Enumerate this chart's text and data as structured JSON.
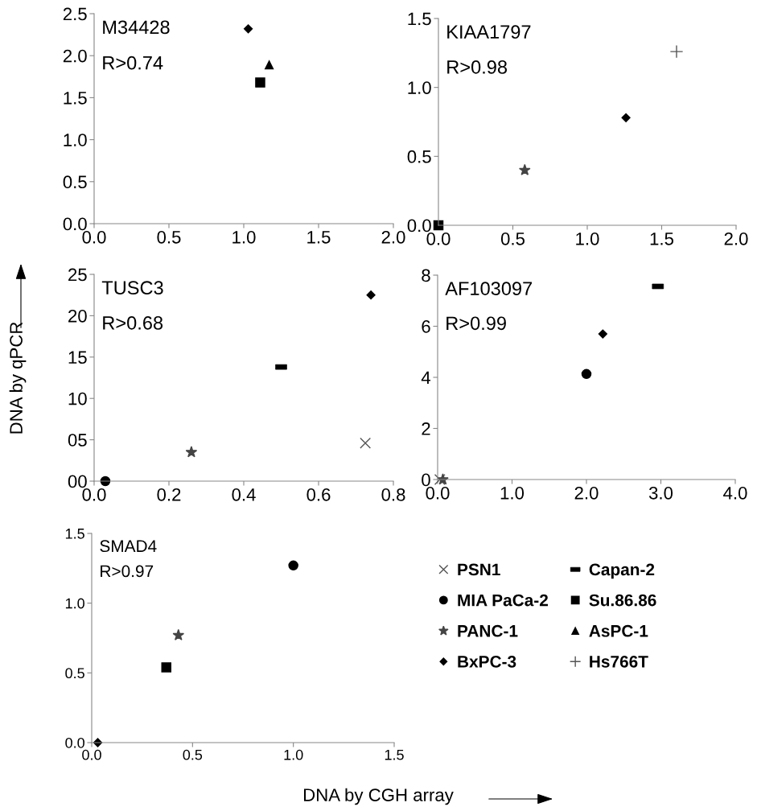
{
  "chart_data": [
    {
      "type": "scatter",
      "annotations": [
        "M34428",
        "R>0.74"
      ],
      "xlim": [
        0.0,
        2.0
      ],
      "xticks": [
        {
          "value": 0,
          "label": "0.0"
        },
        {
          "value": 0.5,
          "label": "0.5"
        },
        {
          "value": 1,
          "label": "1.0"
        },
        {
          "value": 1.5,
          "label": "1.5"
        },
        {
          "value": 2,
          "label": "2.0"
        }
      ],
      "ylim": [
        0.0,
        2.5
      ],
      "yticks": [
        {
          "value": 0,
          "label": "0.0"
        },
        {
          "value": 0.5,
          "label": "0.5"
        },
        {
          "value": 1,
          "label": "1.0"
        },
        {
          "value": 1.5,
          "label": "1.5"
        },
        {
          "value": 2,
          "label": "2.0"
        },
        {
          "value": 2.5,
          "label": "2.5"
        }
      ],
      "series": [
        {
          "marker": "diamond",
          "color": "#000000",
          "x": [
            1.03
          ],
          "values": [
            2.32
          ]
        },
        {
          "marker": "square",
          "color": "#000000",
          "x": [
            1.11
          ],
          "values": [
            1.68
          ]
        },
        {
          "marker": "triangle",
          "color": "#000000",
          "x": [
            1.17
          ],
          "values": [
            1.89
          ]
        }
      ]
    },
    {
      "type": "scatter",
      "annotations": [
        "KIAA1797",
        "R>0.98"
      ],
      "xlim": [
        0.0,
        2.0
      ],
      "xticks": [
        {
          "value": 0,
          "label": "0.0"
        },
        {
          "value": 0.5,
          "label": "0.5"
        },
        {
          "value": 1,
          "label": "1.0"
        },
        {
          "value": 1.5,
          "label": "1.5"
        },
        {
          "value": 2,
          "label": "2.0"
        }
      ],
      "ylim": [
        0.0,
        1.5
      ],
      "yticks": [
        {
          "value": 0,
          "label": "0.0"
        },
        {
          "value": 0.5,
          "label": "0.5"
        },
        {
          "value": 1,
          "label": "1.0"
        },
        {
          "value": 1.5,
          "label": "1.5"
        }
      ],
      "series": [
        {
          "marker": "square",
          "color": "#000000",
          "x": [
            0.0
          ],
          "values": [
            0.0
          ]
        },
        {
          "marker": "star",
          "color": "#444444",
          "x": [
            0.58
          ],
          "values": [
            0.4
          ]
        },
        {
          "marker": "diamond",
          "color": "#000000",
          "x": [
            1.26
          ],
          "values": [
            0.78
          ]
        },
        {
          "marker": "plus",
          "color": "#555555",
          "x": [
            1.6
          ],
          "values": [
            1.26
          ]
        }
      ]
    },
    {
      "type": "scatter",
      "annotations": [
        "TUSC3",
        "R>0.68"
      ],
      "ylabel": "DNA by qPCR",
      "xlim": [
        0.0,
        0.8
      ],
      "xticks": [
        {
          "value": 0,
          "label": "0.0"
        },
        {
          "value": 0.2,
          "label": "0.2"
        },
        {
          "value": 0.4,
          "label": "0.4"
        },
        {
          "value": 0.6,
          "label": "0.6"
        },
        {
          "value": 0.8,
          "label": "0.8"
        }
      ],
      "ylim": [
        0,
        25
      ],
      "yticks": [
        {
          "value": 0,
          "label": "00"
        },
        {
          "value": 5,
          "label": "05"
        },
        10,
        15,
        20,
        25
      ],
      "series": [
        {
          "marker": "circle",
          "color": "#000000",
          "x": [
            0.03
          ],
          "values": [
            0
          ]
        },
        {
          "marker": "star",
          "color": "#444444",
          "x": [
            0.26
          ],
          "values": [
            3.5
          ]
        },
        {
          "color": "#000000",
          "x": [
            0.5
          ],
          "values": [
            13.8
          ]
        },
        {
          "marker": "cross",
          "color": "#555555",
          "x": [
            0.725
          ],
          "values": [
            4.6
          ]
        },
        {
          "marker": "diamond",
          "color": "#000000",
          "x": [
            0.74
          ],
          "values": [
            22.5
          ]
        }
      ]
    },
    {
      "type": "scatter",
      "annotations": [
        "AF103097",
        "R>0.99"
      ],
      "xlim": [
        0.0,
        4.0
      ],
      "xticks": [
        {
          "value": 0,
          "label": "0.0"
        },
        {
          "value": 1,
          "label": "1.0"
        },
        {
          "value": 2,
          "label": "2.0"
        },
        {
          "value": 3,
          "label": "3.0"
        },
        {
          "value": 4,
          "label": "4.0"
        }
      ],
      "ylim": [
        0,
        8
      ],
      "yticks": [
        0,
        2,
        4,
        6,
        8
      ],
      "series": [
        {
          "marker": "cross",
          "color": "#555555",
          "x": [
            0.03
          ],
          "values": [
            0
          ]
        },
        {
          "marker": "star",
          "color": "#444444",
          "x": [
            0.07
          ],
          "values": [
            0
          ]
        },
        {
          "marker": "circle",
          "color": "#000000",
          "x": [
            2.0
          ],
          "values": [
            4.13
          ]
        },
        {
          "marker": "diamond",
          "color": "#000000",
          "x": [
            2.22
          ],
          "values": [
            5.7
          ]
        },
        {
          "color": "#000000",
          "x": [
            2.96
          ],
          "values": [
            7.56
          ]
        }
      ]
    },
    {
      "type": "scatter",
      "annotations": [
        "SMAD4",
        "R>0.97"
      ],
      "xlabel": "DNA by CGH array",
      "xlim": [
        0.0,
        1.5
      ],
      "xticks": [
        {
          "value": 0,
          "label": "0.0"
        },
        {
          "value": 0.5,
          "label": "0.5"
        },
        {
          "value": 1,
          "label": "1.0"
        },
        {
          "value": 1.5,
          "label": "1.5"
        }
      ],
      "ylim": [
        0.0,
        1.5
      ],
      "yticks": [
        {
          "value": 0,
          "label": "0.0"
        },
        {
          "value": 0.5,
          "label": "0.5"
        },
        {
          "value": 1,
          "label": "1.0"
        },
        {
          "value": 1.5,
          "label": "1.5"
        }
      ],
      "legend": "right",
      "series": [
        {
          "name": "PSN1",
          "marker": "cross",
          "color": "#555555"
        },
        {
          "name": "MIA PaCa-2",
          "marker": "circle",
          "color": "#000000",
          "x": [
            1.0
          ],
          "values": [
            1.27
          ]
        },
        {
          "name": "PANC-1",
          "marker": "star",
          "color": "#444444",
          "x": [
            0.43
          ],
          "values": [
            0.77
          ]
        },
        {
          "name": "BxPC-3",
          "marker": "diamond",
          "color": "#000000",
          "x": [
            0.03
          ],
          "values": [
            0.0
          ]
        },
        {
          "name": "Capan-2",
          "color": "#000000"
        },
        {
          "name": "Su.86.86",
          "marker": "square",
          "color": "#000000",
          "x": [
            0.37
          ],
          "values": [
            0.54
          ]
        },
        {
          "name": "AsPC-1",
          "marker": "triangle",
          "color": "#000000"
        },
        {
          "name": "Hs766T",
          "marker": "plus",
          "color": "#555555"
        }
      ]
    }
  ]
}
